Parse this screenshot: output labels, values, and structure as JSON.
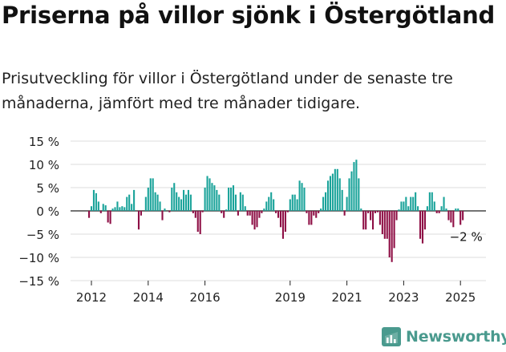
{
  "header": {
    "title": "Priserna på villor sjönk i Östergötland",
    "subtitle": "Prisutveckling för villor i Östergötland under de senaste tre månaderna, jämfört med tre månader tidigare."
  },
  "branding": {
    "name": "Newsworthy",
    "icon": "newsworthy-logo-icon",
    "color": "#4a9a8e"
  },
  "colors": {
    "positive": "#1aa39a",
    "negative": "#8e0f45"
  },
  "chart_data": {
    "type": "bar",
    "title": "",
    "xlabel": "",
    "ylabel": "",
    "y_unit": "%",
    "ylim": [
      -15,
      15
    ],
    "yticks": [
      15,
      10,
      5,
      0,
      -5,
      -10,
      -15
    ],
    "ytick_labels": [
      "15 %",
      "10 %",
      "5 %",
      "0 %",
      "−5 %",
      "−10 %",
      "−15 %"
    ],
    "xlim": [
      "2011-01",
      "2025-12"
    ],
    "xticks": [
      "2012-01",
      "2014-01",
      "2016-01",
      "2019-01",
      "2021-01",
      "2023-01",
      "2025-01"
    ],
    "xtick_labels": [
      "2012",
      "2014",
      "2016",
      "2019",
      "2021",
      "2023",
      "2025"
    ],
    "grid": true,
    "legend": "none",
    "annotation": {
      "date": "2025-02",
      "value": -2,
      "label": "−2 %"
    },
    "dates": [
      "2011-12",
      "2012-01",
      "2012-02",
      "2012-03",
      "2012-04",
      "2012-05",
      "2012-06",
      "2012-07",
      "2012-08",
      "2012-09",
      "2012-10",
      "2012-11",
      "2012-12",
      "2013-01",
      "2013-02",
      "2013-03",
      "2013-04",
      "2013-05",
      "2013-06",
      "2013-07",
      "2013-08",
      "2013-09",
      "2013-10",
      "2013-11",
      "2013-12",
      "2014-01",
      "2014-02",
      "2014-03",
      "2014-04",
      "2014-05",
      "2014-06",
      "2014-07",
      "2014-08",
      "2014-09",
      "2014-10",
      "2014-11",
      "2014-12",
      "2015-01",
      "2015-02",
      "2015-03",
      "2015-04",
      "2015-05",
      "2015-06",
      "2015-07",
      "2015-08",
      "2015-09",
      "2015-10",
      "2015-11",
      "2015-12",
      "2016-01",
      "2016-02",
      "2016-03",
      "2016-04",
      "2016-05",
      "2016-06",
      "2016-07",
      "2016-08",
      "2016-09",
      "2016-10",
      "2016-11",
      "2016-12",
      "2017-01",
      "2017-02",
      "2017-03",
      "2017-04",
      "2017-05",
      "2017-06",
      "2017-07",
      "2017-08",
      "2017-09",
      "2017-10",
      "2017-11",
      "2017-12",
      "2018-01",
      "2018-02",
      "2018-03",
      "2018-04",
      "2018-05",
      "2018-06",
      "2018-07",
      "2018-08",
      "2018-09",
      "2018-10",
      "2018-11",
      "2018-12",
      "2019-01",
      "2019-02",
      "2019-03",
      "2019-04",
      "2019-05",
      "2019-06",
      "2019-07",
      "2019-08",
      "2019-09",
      "2019-10",
      "2019-11",
      "2019-12",
      "2020-01",
      "2020-02",
      "2020-03",
      "2020-04",
      "2020-05",
      "2020-06",
      "2020-07",
      "2020-08",
      "2020-09",
      "2020-10",
      "2020-11",
      "2020-12",
      "2021-01",
      "2021-02",
      "2021-03",
      "2021-04",
      "2021-05",
      "2021-06",
      "2021-07",
      "2021-08",
      "2021-09",
      "2021-10",
      "2021-11",
      "2021-12",
      "2022-01",
      "2022-02",
      "2022-03",
      "2022-04",
      "2022-05",
      "2022-06",
      "2022-07",
      "2022-08",
      "2022-09",
      "2022-10",
      "2022-11",
      "2022-12",
      "2023-01",
      "2023-02",
      "2023-03",
      "2023-04",
      "2023-05",
      "2023-06",
      "2023-07",
      "2023-08",
      "2023-09",
      "2023-10",
      "2023-11",
      "2023-12",
      "2024-01",
      "2024-02",
      "2024-03",
      "2024-04",
      "2024-05",
      "2024-06",
      "2024-07",
      "2024-08",
      "2024-09",
      "2024-10",
      "2024-11",
      "2024-12",
      "2025-01",
      "2025-02"
    ],
    "values": [
      -1.5,
      1.0,
      4.5,
      3.8,
      2.0,
      -0.5,
      1.5,
      1.2,
      -2.5,
      -2.8,
      0.5,
      0.8,
      2.0,
      0.8,
      1.0,
      0.8,
      3.0,
      3.5,
      1.5,
      4.5,
      0,
      -4.0,
      -1.0,
      0,
      3.0,
      5.0,
      7.0,
      7.0,
      4.0,
      3.5,
      2.0,
      -2.0,
      0.5,
      0,
      -0.3,
      5.0,
      6.0,
      4.0,
      3.0,
      2.5,
      4.5,
      3.5,
      4.5,
      3.5,
      -0.5,
      -1.5,
      -4.5,
      -5.0,
      -0.3,
      5.0,
      7.5,
      7.0,
      6.0,
      5.5,
      4.5,
      3.5,
      -0.5,
      -1.5,
      0.3,
      5.0,
      5.0,
      5.5,
      3.5,
      -1.0,
      4.0,
      3.5,
      1.0,
      -1.0,
      -1.0,
      -3.0,
      -4.0,
      -3.5,
      -1.5,
      -0.5,
      0.5,
      2.0,
      3.0,
      4.0,
      2.5,
      -0.5,
      -1.5,
      -3.5,
      -6.0,
      -4.5,
      -0.3,
      2.5,
      3.5,
      3.5,
      2.5,
      6.5,
      6.0,
      5.0,
      -0.5,
      -3.0,
      -3.0,
      -1.0,
      -1.5,
      -0.5,
      0.5,
      3.0,
      4.0,
      6.5,
      7.5,
      8.0,
      9.0,
      9.0,
      7.0,
      4.5,
      -1.0,
      3.0,
      7.0,
      8.5,
      10.5,
      11.0,
      7.0,
      0.5,
      -4.0,
      -4.0,
      -0.5,
      -2.0,
      -4.0,
      -0.5,
      -0.3,
      -3.0,
      -5.0,
      -6.0,
      -6.0,
      -10.0,
      -11.0,
      -8.0,
      -2.0,
      0.3,
      2.0,
      2.0,
      3.0,
      1.0,
      3.0,
      3.0,
      4.0,
      1.0,
      -6.0,
      -7.0,
      -4.0,
      1.0,
      4.0,
      4.0,
      2.0,
      -0.5,
      -0.5,
      1.0,
      3.0,
      0.5,
      -2.0,
      -2.5,
      -3.5,
      0.5,
      0.5,
      -3.0,
      -2.0
    ]
  }
}
